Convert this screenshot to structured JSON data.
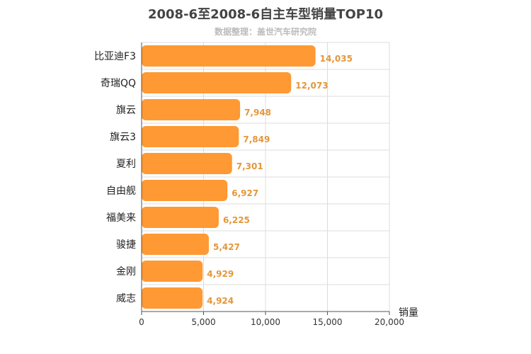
{
  "chart_data": {
    "type": "bar",
    "orientation": "horizontal",
    "title": "2008-6至2008-6自主车型销量TOP10",
    "subtitle": "数据整理：盖世汽车研究院",
    "xlabel": "销量",
    "ylabel": "",
    "categories": [
      "比亚迪F3",
      "奇瑞QQ",
      "旗云",
      "旗云3",
      "夏利",
      "自由舰",
      "福美来",
      "骏捷",
      "金刚",
      "威志"
    ],
    "values": [
      14035,
      12073,
      7948,
      7849,
      7301,
      6927,
      6225,
      5427,
      4929,
      4924
    ],
    "value_labels": [
      "14,035",
      "12,073",
      "7,948",
      "7,849",
      "7,301",
      "6,927",
      "6,225",
      "5,427",
      "4,929",
      "4,924"
    ],
    "xlim": [
      0,
      20000
    ],
    "x_ticks": [
      0,
      5000,
      10000,
      15000,
      20000
    ],
    "x_tick_labels": [
      "0",
      "5,000",
      "10,000",
      "15,000",
      "20,000"
    ],
    "grid": true,
    "bar_color": "#ff9933",
    "label_color": "#e3973a"
  }
}
